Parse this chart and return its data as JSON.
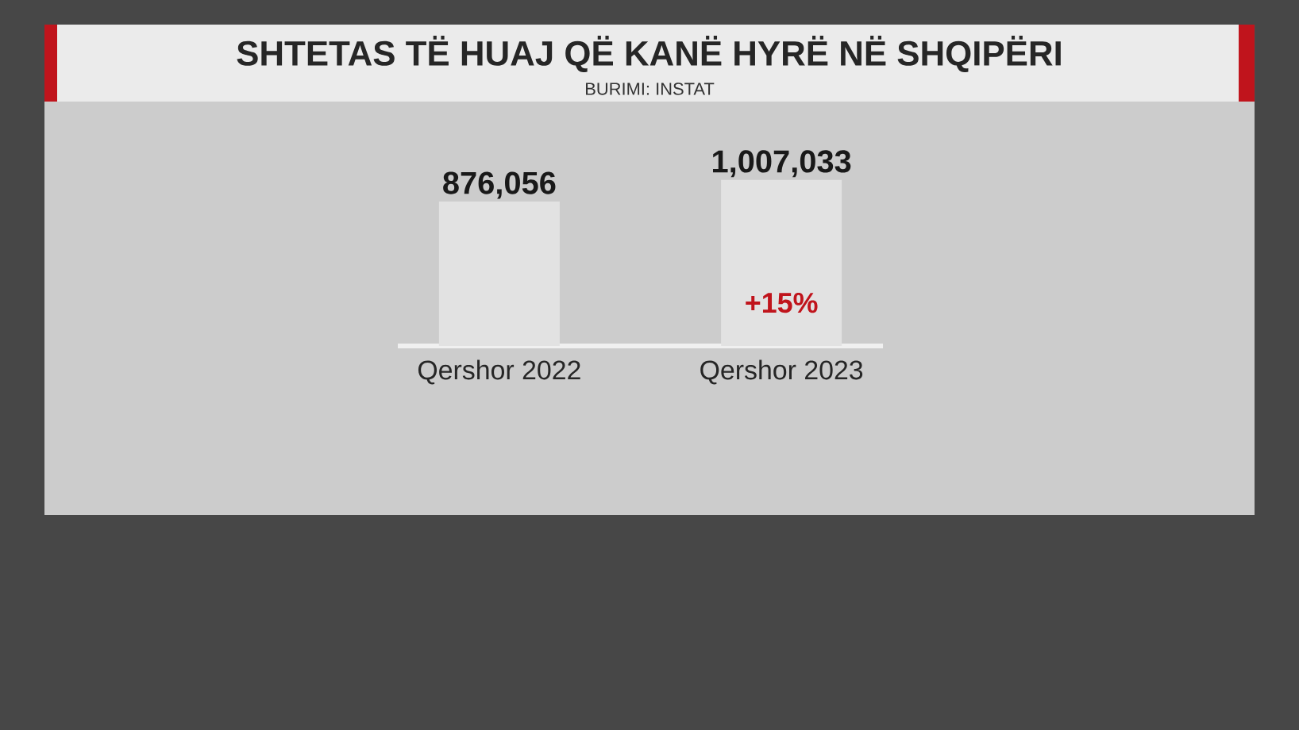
{
  "chart_data": {
    "type": "bar",
    "title": "SHTETAS TË HUAJ QË KANË HYRË NË SHQIPËRI",
    "subtitle": "BURIMI: INSTAT",
    "categories": [
      "Qershor 2022",
      "Qershor 2023"
    ],
    "values": [
      876056,
      1007033
    ],
    "value_labels": [
      "876,056",
      "1,007,033"
    ],
    "color": "#e2e2e2",
    "annotations": [
      "+15%"
    ]
  }
}
